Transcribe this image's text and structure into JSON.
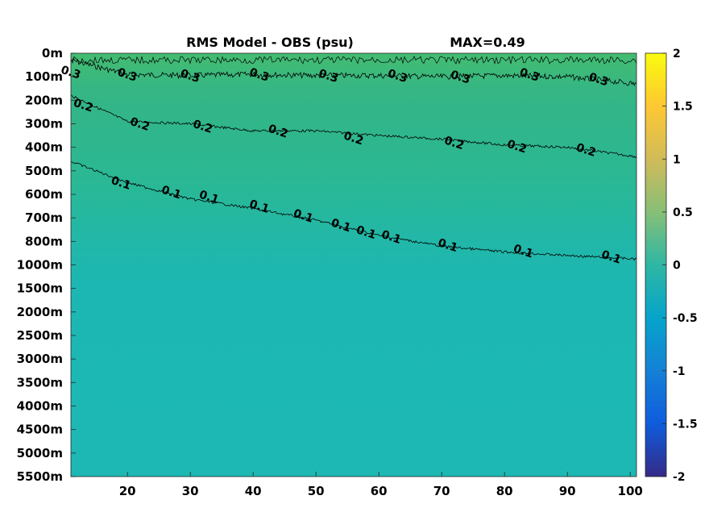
{
  "chart_data": {
    "type": "heatmap",
    "title": "RMS Model - OBS (psu)",
    "max_label": "MAX=0.49",
    "x_ticks": [
      20,
      30,
      40,
      50,
      60,
      70,
      80,
      90,
      100
    ],
    "xlim": [
      11,
      101
    ],
    "y_tick_labels": [
      "0m",
      "100m",
      "200m",
      "300m",
      "400m",
      "500m",
      "600m",
      "700m",
      "800m",
      "1000m",
      "1500m",
      "2000m",
      "2500m",
      "3000m",
      "3500m",
      "4000m",
      "4500m",
      "5000m",
      "5500m"
    ],
    "colorbar": {
      "range": [
        -2,
        2
      ],
      "ticks": [
        2,
        1.5,
        1,
        0.5,
        0,
        -0.5,
        -1,
        -1.5,
        -2
      ],
      "tick_labels": [
        "2",
        "1.5",
        "1",
        "0.5",
        "0",
        "-0.5",
        "-1",
        "-1.5",
        "-2"
      ],
      "colormap": "parula",
      "position": "right"
    },
    "field_description_levels": [
      {
        "depth_label": "0m",
        "value": 0.42
      },
      {
        "depth_label": "300m",
        "value": 0.35
      },
      {
        "depth_label": "800m",
        "value": 0.18
      },
      {
        "depth_label": "1500m",
        "value": 0.05
      },
      {
        "depth_label": "5500m",
        "value": 0.02
      }
    ],
    "contours": [
      {
        "level": 0.3,
        "label": "0.3",
        "points": [
          [
            11,
            0.3
          ],
          [
            20,
            0.9
          ],
          [
            30,
            0.95
          ],
          [
            40,
            0.9
          ],
          [
            50,
            0.95
          ],
          [
            60,
            0.95
          ],
          [
            70,
            1.0
          ],
          [
            80,
            0.95
          ],
          [
            90,
            1.0
          ],
          [
            101,
            1.3
          ]
        ],
        "label_positions": [
          [
            11,
            0.8
          ],
          [
            20,
            0.9
          ],
          [
            30,
            0.95
          ],
          [
            41,
            0.9
          ],
          [
            52,
            0.95
          ],
          [
            63,
            0.95
          ],
          [
            73,
            1.0
          ],
          [
            84,
            0.9
          ],
          [
            95,
            1.1
          ]
        ]
      },
      {
        "level": 0.2,
        "label": "0.2",
        "points": [
          [
            11,
            1.8
          ],
          [
            20,
            2.9
          ],
          [
            30,
            3.0
          ],
          [
            40,
            3.3
          ],
          [
            50,
            3.3
          ],
          [
            60,
            3.5
          ],
          [
            70,
            3.65
          ],
          [
            80,
            3.9
          ],
          [
            90,
            4.0
          ],
          [
            101,
            4.4
          ]
        ],
        "label_positions": [
          [
            13,
            2.2
          ],
          [
            22,
            3.0
          ],
          [
            32,
            3.1
          ],
          [
            44,
            3.3
          ],
          [
            56,
            3.6
          ],
          [
            72,
            3.8
          ],
          [
            82,
            3.95
          ],
          [
            93,
            4.1
          ]
        ]
      },
      {
        "level": 0.1,
        "label": "0.1",
        "points": [
          [
            11,
            4.6
          ],
          [
            20,
            5.5
          ],
          [
            30,
            6.2
          ],
          [
            40,
            6.6
          ],
          [
            50,
            7.1
          ],
          [
            60,
            7.75
          ],
          [
            70,
            8.2
          ],
          [
            80,
            8.45
          ],
          [
            90,
            8.6
          ],
          [
            101,
            8.75
          ]
        ],
        "label_positions": [
          [
            19,
            5.5
          ],
          [
            27,
            5.9
          ],
          [
            33,
            6.1
          ],
          [
            41,
            6.5
          ],
          [
            48,
            6.9
          ],
          [
            54,
            7.3
          ],
          [
            58,
            7.6
          ],
          [
            62,
            7.8
          ],
          [
            71,
            8.15
          ],
          [
            83,
            8.4
          ],
          [
            97,
            8.65
          ]
        ]
      }
    ]
  }
}
